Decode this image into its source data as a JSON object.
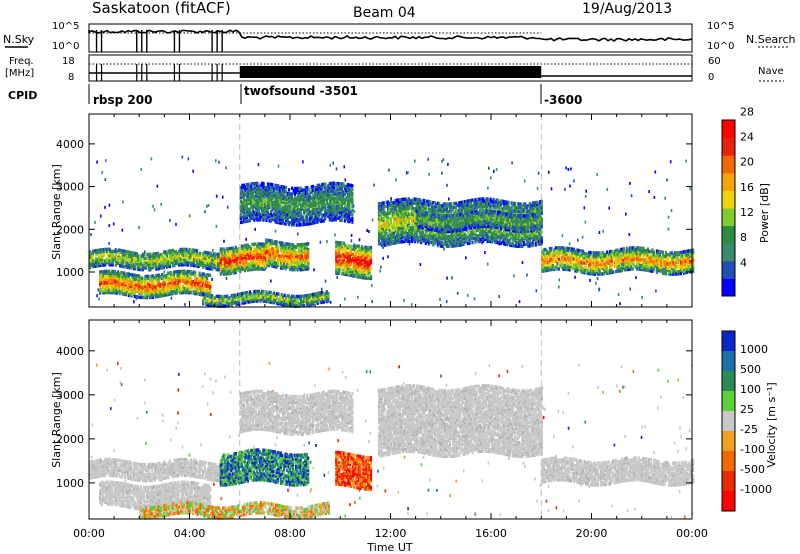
{
  "header": {
    "title": "Saskatoon (fitACF)",
    "beam": "Beam 04",
    "date": "19/Aug/2013"
  },
  "panels": {
    "nsky": {
      "left_label": "N.Sky",
      "right_label": "N.Search",
      "left_ticks": [
        "10^5",
        "10^0"
      ],
      "right_ticks": [
        "10^5",
        "10^0"
      ]
    },
    "freq": {
      "left_label_1": "Freq.",
      "left_label_2": "[MHz]",
      "right_label": "Nave",
      "left_ticks": [
        "18",
        "8"
      ],
      "right_ticks": [
        "60",
        "0"
      ]
    },
    "cpid": {
      "label": "CPID",
      "segments": [
        {
          "label": "rbsp 200",
          "start_hour": 0
        },
        {
          "label": "twofsound -3501",
          "start_hour": 6
        },
        {
          "label": "-3600",
          "start_hour": 18
        }
      ]
    }
  },
  "chart_data": [
    {
      "type": "heatmap",
      "name": "power",
      "ylabel": "Slant Range [km]",
      "xlabel": "",
      "ylim": [
        180,
        4700
      ],
      "xlim_hours": [
        0,
        24
      ],
      "y_ticks": [
        "1000",
        "2000",
        "3000",
        "4000"
      ],
      "colorbar": {
        "label": "Power [dB]",
        "ticks": [
          "4",
          "8",
          "12",
          "16",
          "20",
          "24",
          "28"
        ],
        "colors": [
          "#0000ff",
          "#1e4fb8",
          "#3a8a6e",
          "#2e8b3e",
          "#7ccd2c",
          "#f2d20a",
          "#f7a400",
          "#f06a00",
          "#e8220a",
          "#ff0000"
        ]
      },
      "echo_bands": [
        {
          "t_start": 0.0,
          "t_end": 5.9,
          "range_low": 1150,
          "range_high": 1550,
          "level": 0.55
        },
        {
          "t_start": 0.4,
          "t_end": 4.8,
          "range_low": 500,
          "range_high": 1000,
          "level": 0.85
        },
        {
          "t_start": 4.5,
          "t_end": 9.5,
          "range_low": 300,
          "range_high": 550,
          "level": 0.5
        },
        {
          "t_start": 5.2,
          "t_end": 7.0,
          "range_low": 1050,
          "range_high": 1650,
          "level": 0.9
        },
        {
          "t_start": 7.0,
          "t_end": 8.7,
          "range_low": 1150,
          "range_high": 1750,
          "level": 0.8
        },
        {
          "t_start": 9.8,
          "t_end": 11.2,
          "range_low": 950,
          "range_high": 1700,
          "level": 0.95
        },
        {
          "t_start": 6.0,
          "t_end": 10.5,
          "range_low": 2200,
          "range_high": 3100,
          "level": 0.35
        },
        {
          "t_start": 11.5,
          "t_end": 18.0,
          "range_low": 1700,
          "range_high": 2700,
          "level": 0.55
        },
        {
          "t_start": 13.0,
          "t_end": 18.0,
          "range_low": 2050,
          "range_high": 2450,
          "level": 0.4
        },
        {
          "t_start": 18.0,
          "t_end": 24.0,
          "range_low": 1050,
          "range_high": 1550,
          "level": 0.75
        }
      ]
    },
    {
      "type": "heatmap",
      "name": "velocity",
      "ylabel": "Slant Range [km]",
      "xlabel": "Time UT",
      "ylim": [
        180,
        4700
      ],
      "xlim_hours": [
        0,
        24
      ],
      "y_ticks": [
        "1000",
        "2000",
        "3000",
        "4000"
      ],
      "x_ticks": [
        "00:00",
        "04:00",
        "08:00",
        "12:00",
        "16:00",
        "20:00",
        "00:00"
      ],
      "colorbar": {
        "label": "Velocity [m s⁻¹]",
        "ticks": [
          "1000",
          "500",
          "100",
          "25",
          "-25",
          "-100",
          "-500",
          "-1000"
        ],
        "colors": [
          "#0a28c8",
          "#1e6ea8",
          "#2e8b57",
          "#5fd03a",
          "#c8c8c8",
          "#f2a020",
          "#f06a00",
          "#e82a00",
          "#ff0000"
        ]
      },
      "echo_bands": [
        {
          "t_start": 0.0,
          "t_end": 5.9,
          "range_low": 1150,
          "range_high": 1550,
          "class": "ground"
        },
        {
          "t_start": 0.4,
          "t_end": 4.8,
          "range_low": 500,
          "range_high": 1000,
          "class": "ground"
        },
        {
          "t_start": 5.2,
          "t_end": 8.7,
          "range_low": 1050,
          "range_high": 1750,
          "class": "positive"
        },
        {
          "t_start": 9.8,
          "t_end": 11.2,
          "range_low": 950,
          "range_high": 1700,
          "class": "negative"
        },
        {
          "t_start": 2.0,
          "t_end": 9.5,
          "range_low": 300,
          "range_high": 550,
          "class": "mixed"
        },
        {
          "t_start": 6.0,
          "t_end": 10.5,
          "range_low": 2200,
          "range_high": 3100,
          "class": "ground"
        },
        {
          "t_start": 11.5,
          "t_end": 18.0,
          "range_low": 1700,
          "range_high": 3200,
          "class": "ground"
        },
        {
          "t_start": 18.0,
          "t_end": 24.0,
          "range_low": 1050,
          "range_high": 1550,
          "class": "ground"
        }
      ]
    }
  ]
}
